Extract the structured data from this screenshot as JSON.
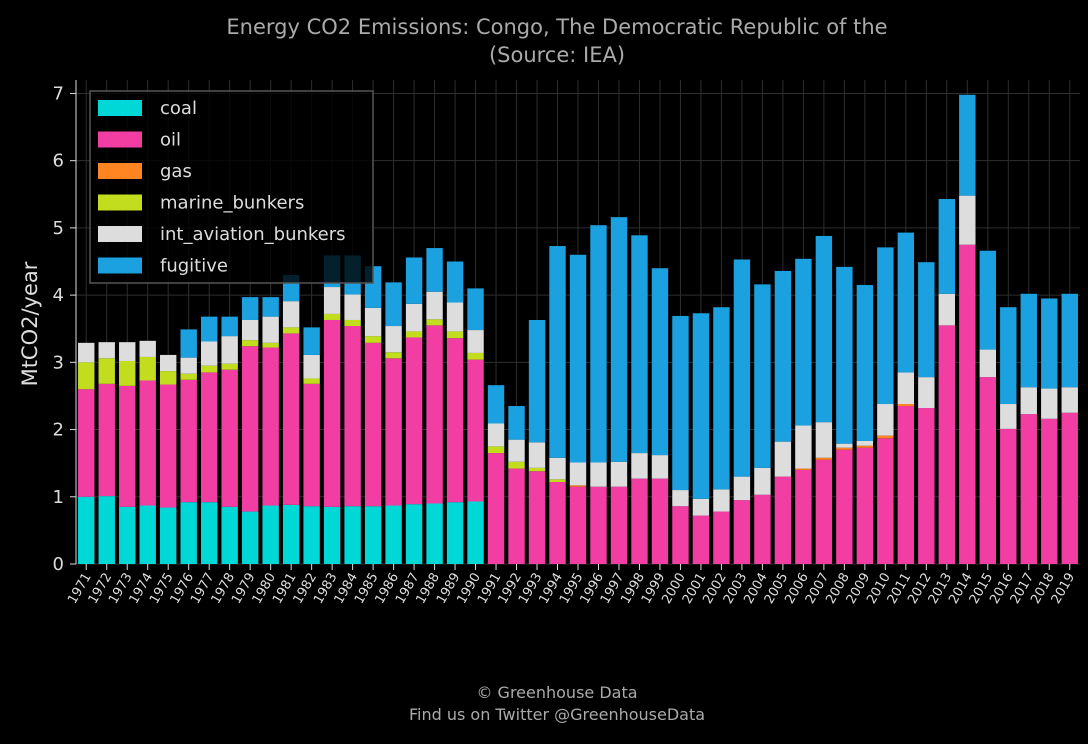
{
  "chart_data": {
    "type": "bar",
    "stacked": true,
    "title": "Energy CO2 Emissions: Congo, The Democratic Republic of the",
    "subtitle": "(Source: IEA)",
    "xlabel": "",
    "ylabel": "MtCO2/year",
    "ylim": [
      0,
      7.2
    ],
    "yticks": [
      "0",
      "1",
      "2",
      "3",
      "4",
      "5",
      "6",
      "7"
    ],
    "grid": true,
    "legend_position": "top-left",
    "categories": [
      "1971",
      "1972",
      "1973",
      "1974",
      "1975",
      "1976",
      "1977",
      "1978",
      "1979",
      "1980",
      "1981",
      "1982",
      "1983",
      "1984",
      "1985",
      "1986",
      "1987",
      "1988",
      "1989",
      "1990",
      "1991",
      "1992",
      "1993",
      "1994",
      "1995",
      "1996",
      "1997",
      "1998",
      "1999",
      "2000",
      "2001",
      "2002",
      "2003",
      "2004",
      "2005",
      "2006",
      "2007",
      "2008",
      "2009",
      "2010",
      "2011",
      "2012",
      "2013",
      "2014",
      "2015",
      "2016",
      "2017",
      "2018",
      "2019"
    ],
    "series": [
      {
        "name": "coal",
        "color": "#00d8d8",
        "values": [
          1.0,
          1.01,
          0.85,
          0.87,
          0.84,
          0.92,
          0.92,
          0.85,
          0.78,
          0.87,
          0.88,
          0.86,
          0.85,
          0.86,
          0.86,
          0.87,
          0.89,
          0.9,
          0.92,
          0.93,
          0,
          0,
          0,
          0,
          0,
          0,
          0,
          0,
          0,
          0,
          0,
          0,
          0,
          0,
          0,
          0,
          0,
          0,
          0,
          0,
          0,
          0,
          0,
          0,
          0,
          0,
          0,
          0,
          0
        ]
      },
      {
        "name": "oil",
        "color": "#f23ea3",
        "values": [
          1.6,
          1.67,
          1.8,
          1.86,
          1.83,
          1.82,
          1.93,
          2.04,
          2.46,
          2.35,
          2.55,
          1.82,
          2.78,
          2.68,
          2.43,
          2.19,
          2.48,
          2.65,
          2.44,
          2.11,
          1.65,
          1.42,
          1.38,
          1.22,
          1.15,
          1.15,
          1.15,
          1.27,
          1.27,
          0.86,
          0.72,
          0.78,
          0.95,
          1.03,
          1.3,
          1.4,
          1.55,
          1.7,
          1.73,
          1.87,
          2.35,
          2.32,
          3.55,
          4.75,
          2.78,
          2.01,
          2.23,
          2.16,
          2.25
        ]
      },
      {
        "name": "gas",
        "color": "#ff8522",
        "values": [
          0,
          0,
          0,
          0,
          0,
          0,
          0,
          0,
          0,
          0,
          0,
          0,
          0,
          0,
          0,
          0,
          0,
          0,
          0,
          0,
          0,
          0,
          0,
          0,
          0.02,
          0,
          0,
          0,
          0,
          0,
          0,
          0,
          0,
          0,
          0,
          0.02,
          0.03,
          0.03,
          0.03,
          0.04,
          0.03,
          0,
          0,
          0,
          0,
          0,
          0,
          0,
          0
        ]
      },
      {
        "name": "marine_bunkers",
        "color": "#c2dd1e",
        "values": [
          0.4,
          0.38,
          0.37,
          0.35,
          0.2,
          0.09,
          0.1,
          0.09,
          0.09,
          0.07,
          0.09,
          0.08,
          0.09,
          0.09,
          0.1,
          0.09,
          0.09,
          0.09,
          0.1,
          0.1,
          0.1,
          0.1,
          0.05,
          0.04,
          0,
          0,
          0,
          0,
          0,
          0,
          0,
          0,
          0,
          0,
          0,
          0,
          0,
          0,
          0,
          0,
          0,
          0,
          0,
          0,
          0,
          0,
          0,
          0,
          0
        ]
      },
      {
        "name": "int_aviation_bunkers",
        "color": "#dddddd",
        "values": [
          0.29,
          0.24,
          0.28,
          0.24,
          0.24,
          0.24,
          0.36,
          0.41,
          0.3,
          0.39,
          0.39,
          0.35,
          0.4,
          0.38,
          0.42,
          0.39,
          0.41,
          0.41,
          0.43,
          0.34,
          0.34,
          0.33,
          0.38,
          0.32,
          0.34,
          0.36,
          0.37,
          0.38,
          0.35,
          0.24,
          0.25,
          0.33,
          0.35,
          0.4,
          0.52,
          0.64,
          0.53,
          0.06,
          0.07,
          0.47,
          0.47,
          0.46,
          0.47,
          0.73,
          0.41,
          0.37,
          0.4,
          0.45,
          0.38
        ]
      },
      {
        "name": "fugitive",
        "color": "#1ba1e0",
        "values": [
          0,
          0,
          0,
          0,
          0,
          0.42,
          0.37,
          0.29,
          0.34,
          0.29,
          0.39,
          0.41,
          0.47,
          0.58,
          0.62,
          0.65,
          0.69,
          0.65,
          0.61,
          0.62,
          0.57,
          0.5,
          1.82,
          3.15,
          3.09,
          3.53,
          3.64,
          3.24,
          2.78,
          2.59,
          2.76,
          2.71,
          3.23,
          2.73,
          2.54,
          2.48,
          2.77,
          2.63,
          2.32,
          2.33,
          2.08,
          1.71,
          1.41,
          1.5,
          1.47,
          1.44,
          1.39,
          1.34,
          1.39
        ]
      }
    ],
    "footer": [
      "© Greenhouse Data",
      "Find us on Twitter @GreenhouseData"
    ]
  }
}
